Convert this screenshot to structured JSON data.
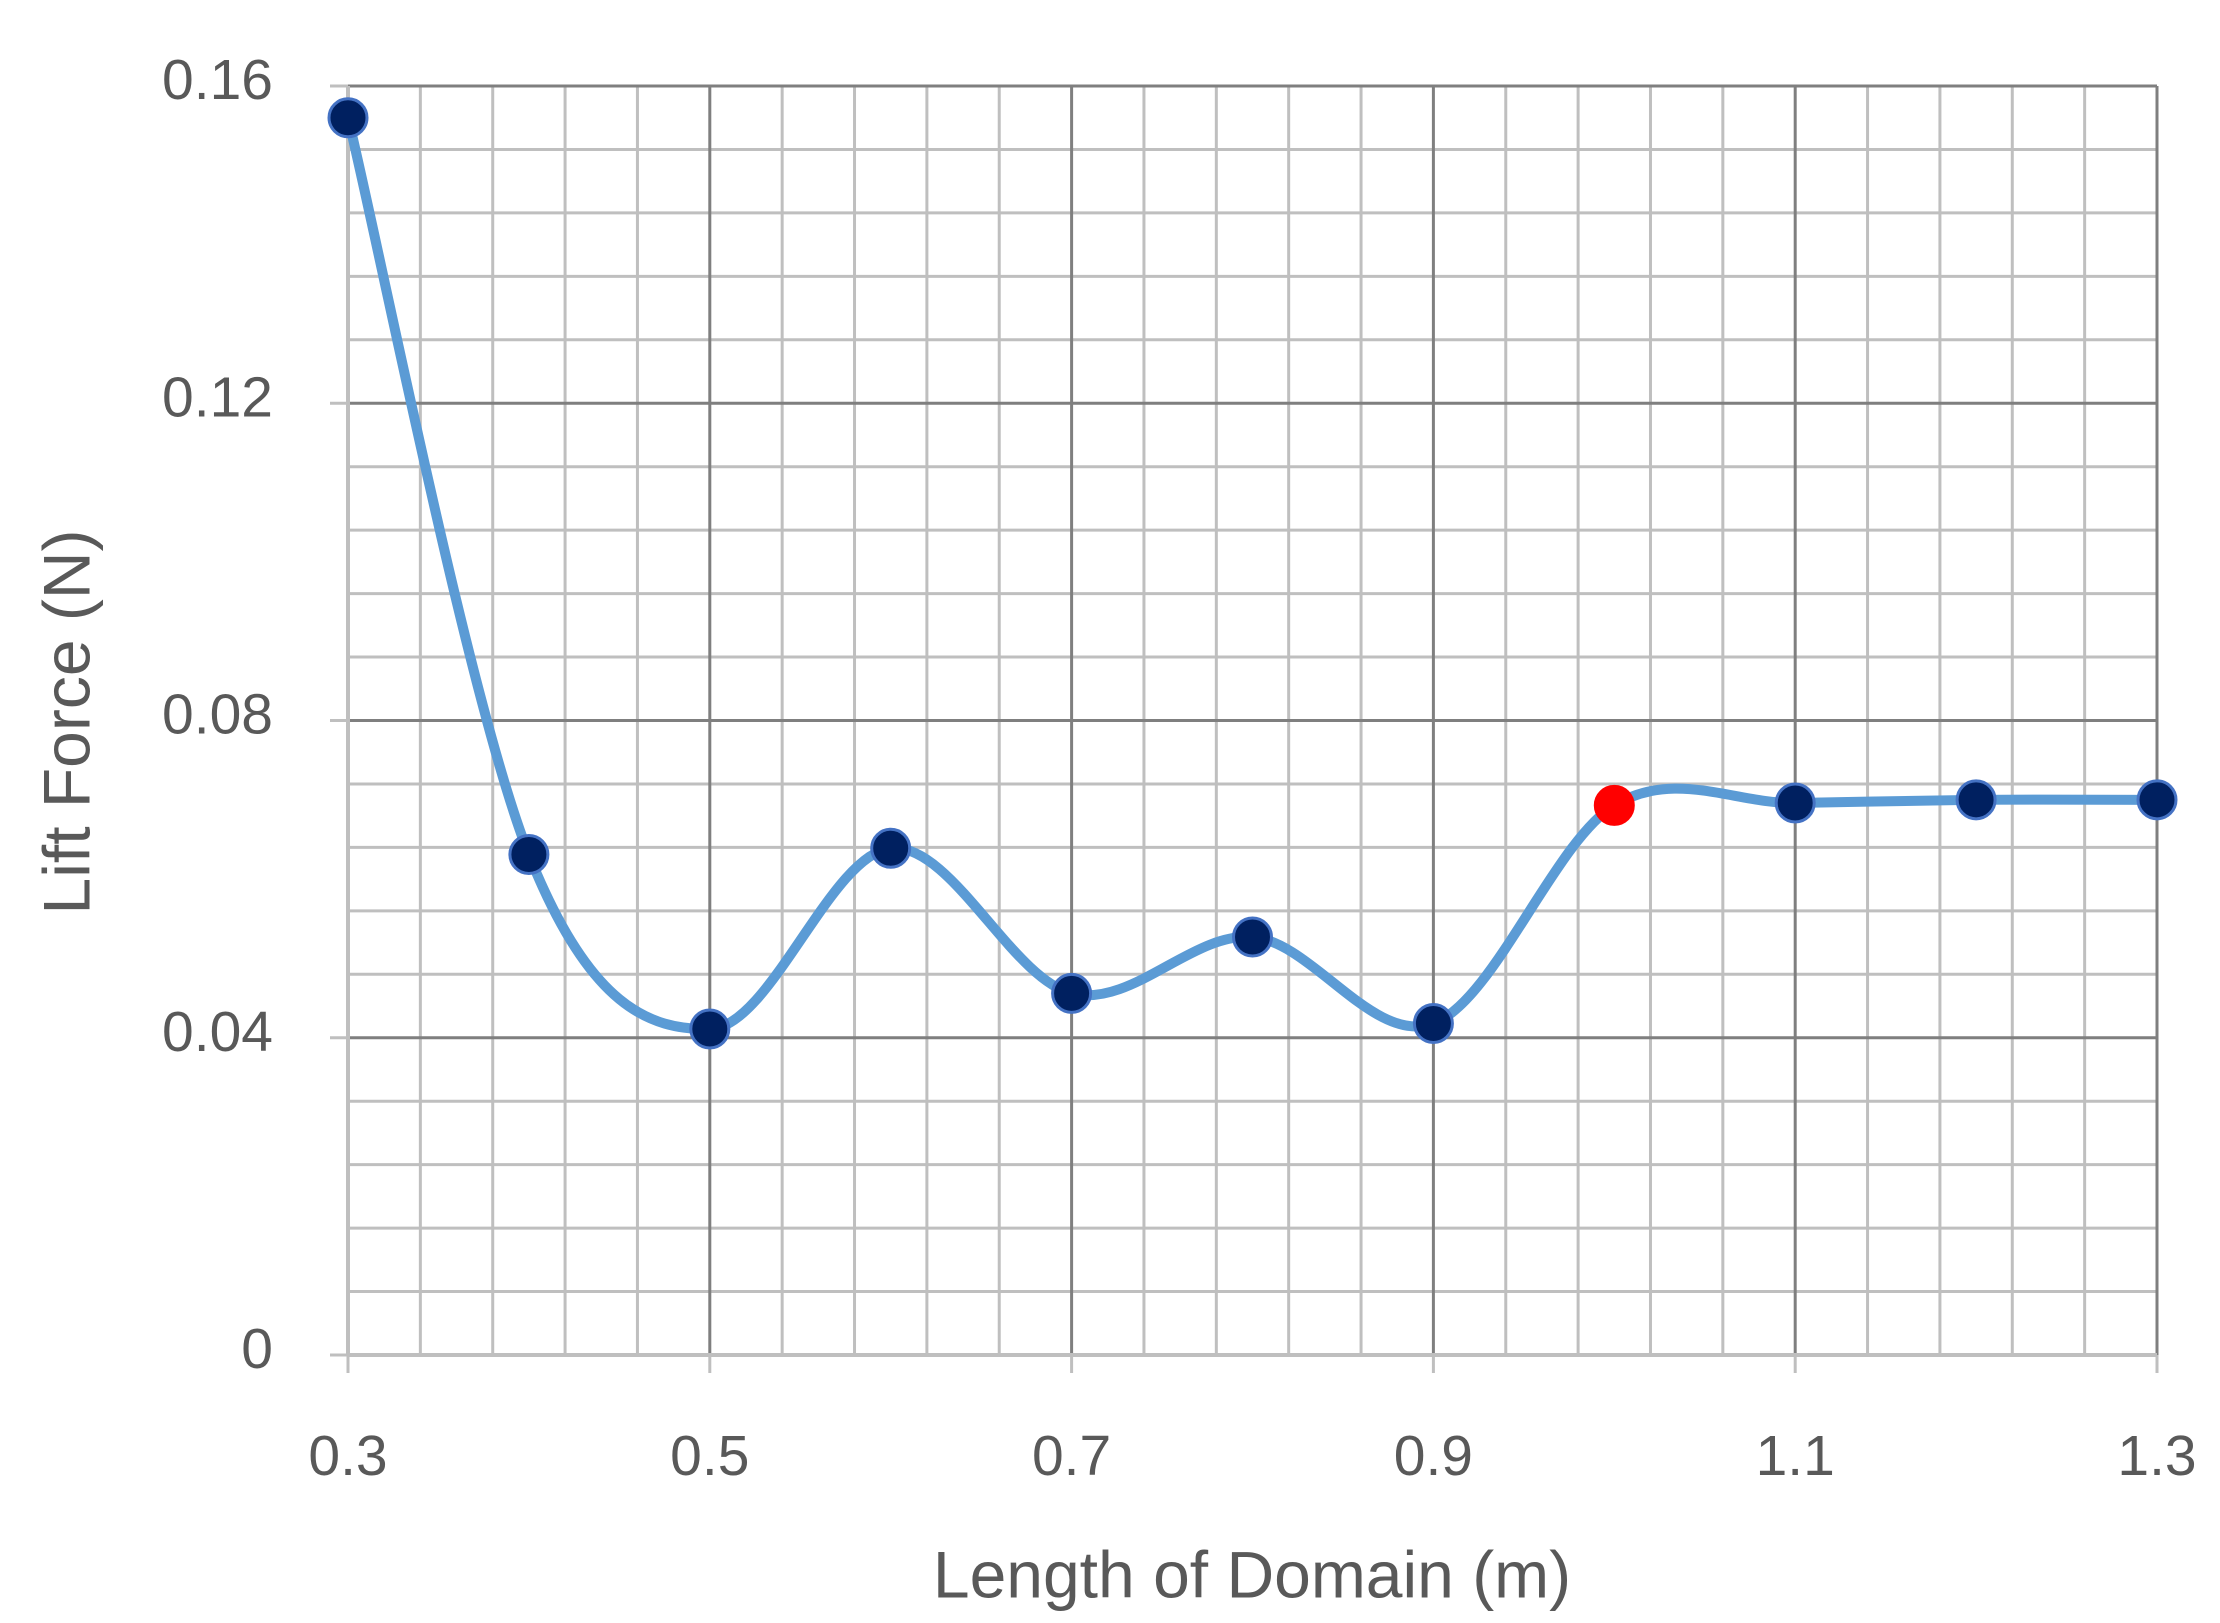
{
  "chart_data": {
    "type": "line",
    "x_label": "Length of Domain (m)",
    "y_label": "Lift Force (N)",
    "x": [
      0.3,
      0.4,
      0.5,
      0.6,
      0.7,
      0.8,
      0.9,
      1.0,
      1.1,
      1.2,
      1.3
    ],
    "series": [
      {
        "color": "#5b9bd5",
        "marker_colors": [
          "#002060",
          "#002060",
          "#002060",
          "#002060",
          "#002060",
          "#002060",
          "#002060",
          "#ff0000",
          "#002060",
          "#002060",
          "#002060"
        ],
        "values": [
          0.156,
          0.0631,
          0.0411,
          0.0639,
          0.0456,
          0.0527,
          0.0418,
          0.0693,
          0.0696,
          0.07,
          0.07
        ]
      }
    ],
    "xlim": [
      0.3,
      1.3
    ],
    "xticks": [
      0.3,
      0.5,
      0.7,
      0.9,
      1.1,
      1.3
    ],
    "x_minor_grid": [
      0.34,
      0.38,
      0.42,
      0.46,
      0.54,
      0.58,
      0.62,
      0.66,
      0.74,
      0.78,
      0.82,
      0.86,
      0.94,
      0.98,
      1.02,
      1.06,
      1.14,
      1.18,
      1.22,
      1.26
    ],
    "ylim": [
      0,
      0.16
    ],
    "yticks": [
      0,
      0.04,
      0.08,
      0.12,
      0.16
    ],
    "y_minor_grid": [
      0.008,
      0.016,
      0.024,
      0.032,
      0.048,
      0.056,
      0.064,
      0.072,
      0.088,
      0.096,
      0.104,
      0.112,
      0.128,
      0.136,
      0.144,
      0.152
    ],
    "grid": true,
    "smooth": true
  }
}
